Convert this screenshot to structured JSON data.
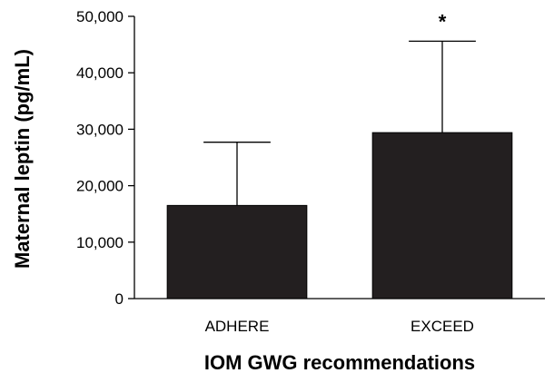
{
  "chart_data": {
    "type": "bar",
    "title": "",
    "xlabel": "IOM GWG recommendations",
    "ylabel": "Maternal leptin (pg/mL)",
    "ylim": [
      0,
      50000
    ],
    "yticks": [
      0,
      10000,
      20000,
      30000,
      40000,
      50000
    ],
    "ytick_labels": [
      "0",
      "10,000",
      "20,000",
      "30,000",
      "40,000",
      "50,000"
    ],
    "categories": [
      "ADHERE",
      "EXCEED"
    ],
    "values": [
      16500,
      29400
    ],
    "error_upper": [
      27700,
      45600
    ],
    "annotations": [
      {
        "category": "EXCEED",
        "text": "*"
      }
    ],
    "grid": false,
    "bar_color": "#231f20"
  }
}
